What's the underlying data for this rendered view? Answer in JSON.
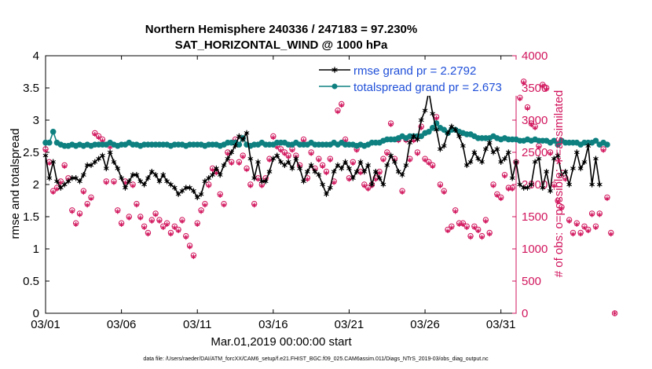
{
  "colors": {
    "rmse": "#000000",
    "spread": "#0f8080",
    "obs": "#d1155c",
    "legend_text": "#1f4fd8"
  },
  "chart_data": {
    "type": "line",
    "title_line1": "Northern Hemisphere 240336 / 247183 = 97.230%",
    "title_line2": "SAT_HORIZONTAL_WIND @ 1000 hPa",
    "xlabel": "Mar.01,2019 00:00:00 start",
    "ylabel_left": "rmse and totalspread",
    "ylabel_right": "# of obs: o=possible; ∗=assimilated",
    "xlim": [
      0,
      31
    ],
    "ylim_left": [
      0,
      4
    ],
    "ylim_right": [
      0,
      4000
    ],
    "xticks": [
      0,
      5,
      10,
      15,
      20,
      25,
      30
    ],
    "xtick_labels": [
      "03/01",
      "03/06",
      "03/11",
      "03/16",
      "03/21",
      "03/26",
      "03/31"
    ],
    "yticks_left": [
      "0",
      "0.5",
      "1",
      "1.5",
      "2",
      "2.5",
      "3",
      "3.5",
      "4"
    ],
    "yticks_right": [
      "0",
      "500",
      "1000",
      "1500",
      "2000",
      "2500",
      "3000",
      "3500",
      "4000"
    ],
    "legend": [
      {
        "label": "rmse grand pr = 2.2792",
        "series": "rmse"
      },
      {
        "label": "totalspread grand pr = 2.673",
        "series": "spread"
      }
    ],
    "footnote": "data file: /Users/raeder/DAI/ATM_forcXX/CAM6_setup/f.e21.FHIST_BGC.f09_025.CAM6assim.011/Diags_NTrS_2019-03/obs_diag_output.nc",
    "step_days": 0.25,
    "series": [
      {
        "name": "rmse",
        "values": [
          2.45,
          2.1,
          2.35,
          2.05,
          1.95,
          2.0,
          2.05,
          2.1,
          2.1,
          2.05,
          2.15,
          2.3,
          2.3,
          2.35,
          2.4,
          2.45,
          2.25,
          2.5,
          2.35,
          2.25,
          2.1,
          1.95,
          2.05,
          2.15,
          2.15,
          2.05,
          2.0,
          2.1,
          2.2,
          2.15,
          2.05,
          2.15,
          2.05,
          2.0,
          1.95,
          1.85,
          1.9,
          1.95,
          1.95,
          1.9,
          1.8,
          1.85,
          2.05,
          2.1,
          2.15,
          2.25,
          2.15,
          2.3,
          2.4,
          2.5,
          2.6,
          2.75,
          2.7,
          2.8,
          2.4,
          2.1,
          2.35,
          2.05,
          2.05,
          2.2,
          2.4,
          2.45,
          2.35,
          2.3,
          2.35,
          2.25,
          2.4,
          2.25,
          2.05,
          2.2,
          2.3,
          2.2,
          2.15,
          2.0,
          1.85,
          1.95,
          2.2,
          2.3,
          2.25,
          2.35,
          2.25,
          2.1,
          2.2,
          2.35,
          2.2,
          2.3,
          2.0,
          2.2,
          2.1,
          2.0,
          2.3,
          2.45,
          2.35,
          2.2,
          2.15,
          2.3,
          2.65,
          2.75,
          2.7,
          3.0,
          3.15,
          3.45,
          3.1,
          2.85,
          2.55,
          2.6,
          2.8,
          2.9,
          2.85,
          2.75,
          2.6,
          2.3,
          2.35,
          2.5,
          2.4,
          2.35,
          2.55,
          2.65,
          2.5,
          2.55,
          2.35,
          2.4,
          2.5,
          2.1,
          2.35,
          2.0,
          1.95,
          1.95,
          2.0,
          2.35,
          2.4,
          1.95,
          2.2,
          1.9,
          2.4,
          2.45,
          2.15,
          2.2,
          2.0,
          2.25,
          2.5,
          2.25,
          2.35,
          2.6,
          2.0,
          2.4,
          2.0
        ],
        "color": "#000000"
      },
      {
        "name": "totalspread",
        "values": [
          2.65,
          2.65,
          2.82,
          2.65,
          2.62,
          2.6,
          2.6,
          2.62,
          2.6,
          2.62,
          2.6,
          2.62,
          2.6,
          2.62,
          2.62,
          2.62,
          2.62,
          2.65,
          2.62,
          2.6,
          2.62,
          2.62,
          2.65,
          2.62,
          2.62,
          2.6,
          2.62,
          2.62,
          2.62,
          2.62,
          2.62,
          2.62,
          2.62,
          2.6,
          2.62,
          2.62,
          2.62,
          2.6,
          2.62,
          2.62,
          2.62,
          2.62,
          2.6,
          2.62,
          2.62,
          2.62,
          2.6,
          2.62,
          2.65,
          2.65,
          2.65,
          2.62,
          2.72,
          2.62,
          2.6,
          2.62,
          2.62,
          2.65,
          2.62,
          2.62,
          2.62,
          2.65,
          2.65,
          2.65,
          2.62,
          2.62,
          2.65,
          2.62,
          2.62,
          2.62,
          2.65,
          2.62,
          2.62,
          2.62,
          2.62,
          2.62,
          2.65,
          2.62,
          2.65,
          2.62,
          2.62,
          2.62,
          2.6,
          2.62,
          2.6,
          2.62,
          2.65,
          2.65,
          2.65,
          2.68,
          2.7,
          2.7,
          2.7,
          2.72,
          2.75,
          2.72,
          2.75,
          2.75,
          2.75,
          2.75,
          2.8,
          2.82,
          2.88,
          2.95,
          2.88,
          2.85,
          2.8,
          2.85,
          2.85,
          2.82,
          2.8,
          2.78,
          2.78,
          2.75,
          2.72,
          2.72,
          2.72,
          2.72,
          2.75,
          2.72,
          2.7,
          2.72,
          2.7,
          2.7,
          2.7,
          2.68,
          2.68,
          2.7,
          2.68,
          2.7,
          2.68,
          2.68,
          2.68,
          2.65,
          2.68,
          2.62,
          2.68,
          2.65,
          2.65,
          2.65,
          2.65,
          2.62,
          2.65,
          2.65,
          2.65,
          2.68,
          2.62,
          2.65,
          2.62
        ],
        "color": "#0f8080"
      },
      {
        "name": "possible",
        "values": [
          2550,
          2350,
          1900,
          1950,
          2050,
          2300,
          2100,
          1600,
          1400,
          1550,
          1900,
          1700,
          1800,
          2800,
          2750,
          2700,
          2050,
          2600,
          2050,
          1600,
          1400,
          2050,
          1500,
          2000,
          1700,
          1500,
          1350,
          1250,
          1450,
          1550,
          1450,
          1350,
          1400,
          1250,
          1350,
          1300,
          1450,
          1200,
          1050,
          900,
          1400,
          1600,
          1700,
          2000,
          2250,
          2200,
          1850,
          1700,
          2500,
          2350,
          2700,
          2350,
          2450,
          2250,
          2000,
          1700,
          2100,
          2000,
          2100,
          2400,
          2750,
          2600,
          2550,
          2500,
          2450,
          2550,
          2450,
          2300,
          2700,
          2100,
          2500,
          2250,
          2400,
          2300,
          2200,
          2400,
          2050,
          3150,
          3250,
          2700,
          2100,
          2350,
          2550,
          2200,
          2000,
          1950,
          2000,
          2100,
          2200,
          2400,
          2500,
          2950,
          2400,
          2700,
          1900,
          2700,
          2400,
          2700,
          2500,
          2900,
          2400,
          2350,
          2300,
          3050,
          2000,
          1900,
          1300,
          1350,
          1600,
          1400,
          1400,
          1350,
          1200,
          1350,
          1300,
          1200,
          1450,
          1250,
          2000,
          1850,
          1800,
          2150,
          1950,
          1950,
          2350,
          3350,
          3600,
          3200,
          2950,
          2900,
          2600,
          3550,
          3500,
          2500,
          2000,
          1750,
          1650,
          2100,
          1450,
          1250,
          1400,
          1250,
          1350,
          1300,
          1550,
          1350,
          1550,
          2550,
          1800,
          1250,
          0
        ],
        "color": "#d1155c"
      },
      {
        "name": "assimilated",
        "values": [
          2530,
          2330,
          1880,
          1930,
          2030,
          2280,
          2080,
          1580,
          1380,
          1530,
          1880,
          1680,
          1780,
          2780,
          2730,
          2680,
          2030,
          2580,
          2030,
          1580,
          1380,
          2030,
          1480,
          1980,
          1680,
          1480,
          1330,
          1230,
          1430,
          1530,
          1430,
          1330,
          1380,
          1230,
          1330,
          1280,
          1430,
          1180,
          1030,
          880,
          1380,
          1580,
          1680,
          1980,
          2230,
          2180,
          1830,
          1680,
          2480,
          2330,
          2680,
          2330,
          2430,
          2230,
          1980,
          1680,
          2080,
          1980,
          2080,
          2380,
          2730,
          2580,
          2530,
          2480,
          2430,
          2530,
          2430,
          2280,
          2680,
          2080,
          2480,
          2230,
          2380,
          2280,
          2180,
          2380,
          2030,
          3130,
          3230,
          2680,
          2080,
          2330,
          2530,
          2180,
          1980,
          1930,
          1980,
          2080,
          2180,
          2380,
          2480,
          2930,
          2380,
          2680,
          1880,
          2680,
          2380,
          2680,
          2480,
          2880,
          2380,
          2330,
          2280,
          3030,
          1980,
          1880,
          1280,
          1330,
          1580,
          1380,
          1380,
          1330,
          1180,
          1330,
          1280,
          1180,
          1430,
          1230,
          1980,
          1830,
          1780,
          2130,
          1930,
          1930,
          2330,
          3330,
          3580,
          3180,
          2930,
          2880,
          2580,
          3530,
          3480,
          2480,
          1980,
          1730,
          1630,
          2080,
          1430,
          1230,
          1380,
          1230,
          1330,
          1280,
          1530,
          1330,
          1530,
          2530,
          1780,
          1230,
          0
        ],
        "color": "#d1155c"
      }
    ]
  }
}
